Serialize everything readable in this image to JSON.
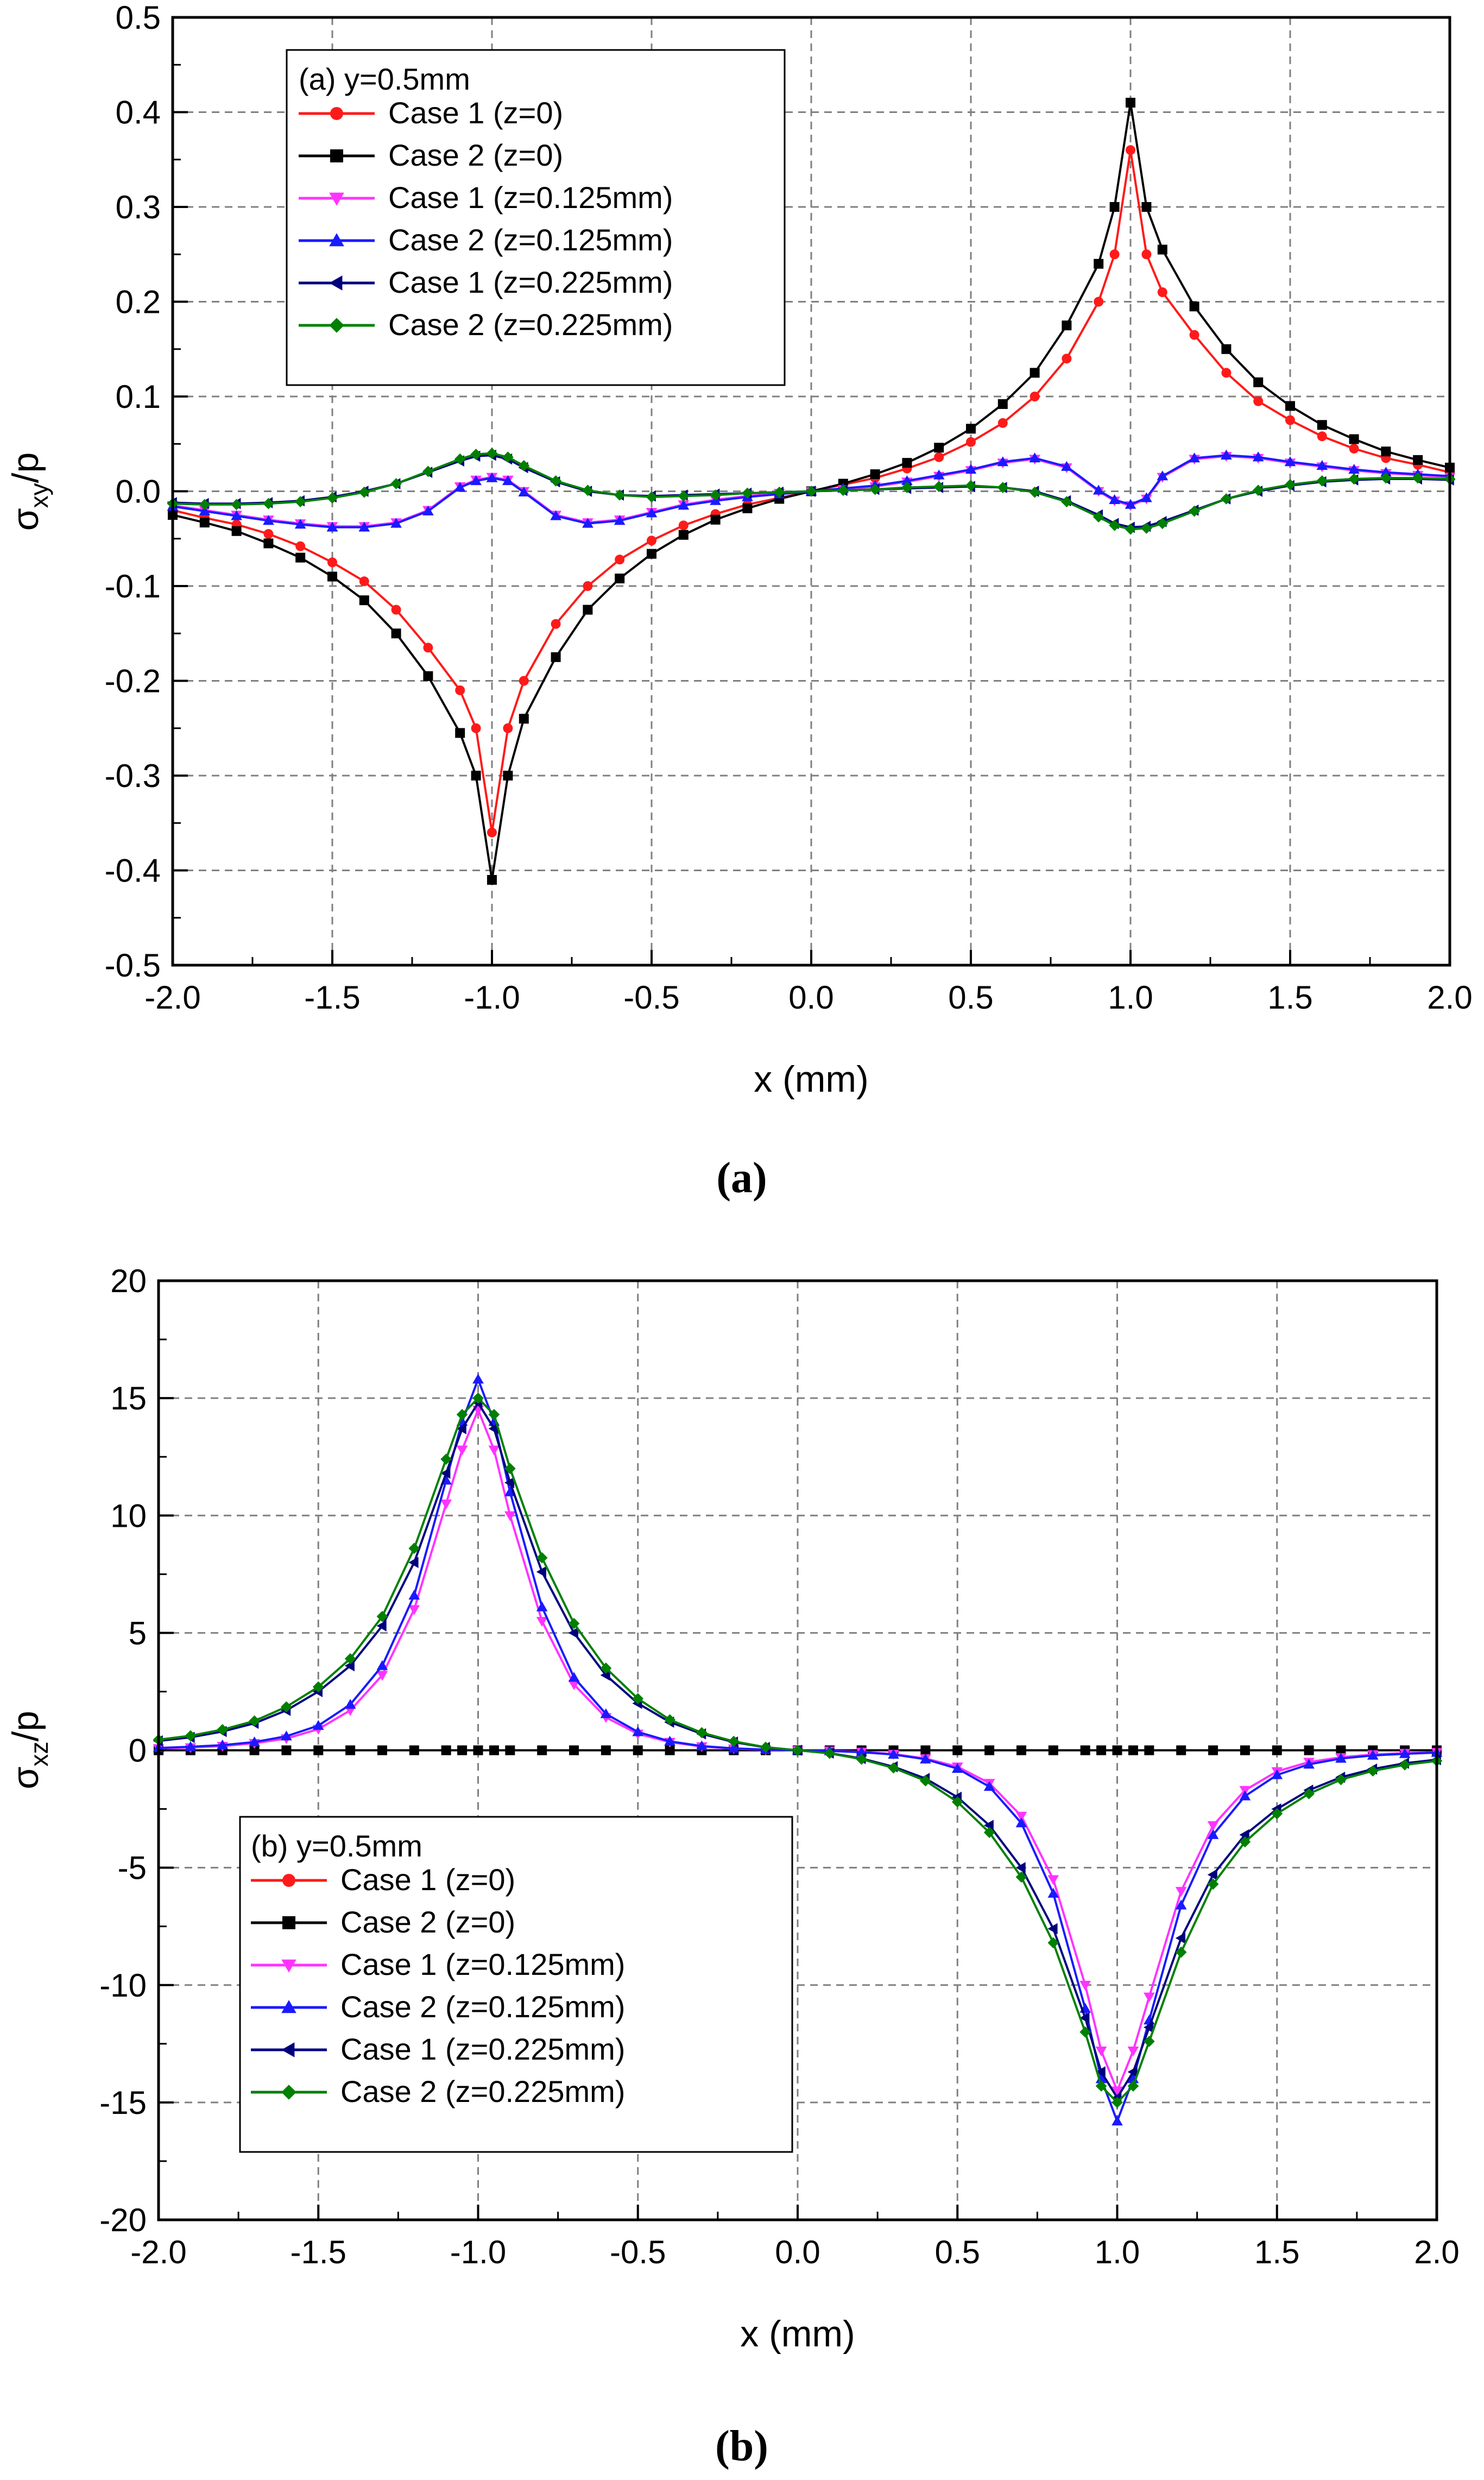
{
  "colors": {
    "case1_z0": "#ff1a1a",
    "case2_z0": "#000000",
    "case1_z0125": "#ff33ff",
    "case2_z0125": "#1a1aff",
    "case1_z0225": "#00007f",
    "case2_z0225": "#008000",
    "grid": "#808080"
  },
  "chart_data": [
    {
      "type": "line",
      "panel": "(a)",
      "caption": "(a)",
      "xlabel": "x (mm)",
      "ylabel_main": "σ",
      "ylabel_sub": "xy",
      "ylabel_tail": "/p",
      "xlim": [
        -2.0,
        2.0
      ],
      "ylim": [
        -0.5,
        0.5
      ],
      "xticks": [
        -2.0,
        -1.5,
        -1.0,
        -0.5,
        0.0,
        0.5,
        1.0,
        1.5,
        2.0
      ],
      "xtick_labels": [
        "-2.0",
        "-1.5",
        "-1.0",
        "-0.5",
        "0.0",
        "0.5",
        "1.0",
        "1.5",
        "2.0"
      ],
      "yticks": [
        -0.5,
        -0.4,
        -0.3,
        -0.2,
        -0.1,
        0.0,
        0.1,
        0.2,
        0.3,
        0.4,
        0.5
      ],
      "ytick_labels": [
        "-0.5",
        "-0.4",
        "-0.3",
        "-0.2",
        "-0.1",
        "0.0",
        "0.1",
        "0.2",
        "0.3",
        "0.4",
        "0.5"
      ],
      "grid": true,
      "legend_title": "(a) y=0.5mm",
      "legend_position": "top-left",
      "x": [
        -2.0,
        -1.9,
        -1.8,
        -1.7,
        -1.6,
        -1.5,
        -1.4,
        -1.3,
        -1.2,
        -1.1,
        -1.05,
        -1.0,
        -0.95,
        -0.9,
        -0.8,
        -0.7,
        -0.6,
        -0.5,
        -0.4,
        -0.3,
        -0.2,
        -0.1,
        0.0,
        0.1,
        0.2,
        0.3,
        0.4,
        0.5,
        0.6,
        0.7,
        0.8,
        0.9,
        0.95,
        1.0,
        1.05,
        1.1,
        1.2,
        1.3,
        1.4,
        1.5,
        1.6,
        1.7,
        1.8,
        1.9,
        2.0
      ],
      "series": [
        {
          "name": "Case 1 (z=0)",
          "color_key": "case1_z0",
          "marker": "circle",
          "values": [
            -0.02,
            -0.028,
            -0.035,
            -0.045,
            -0.058,
            -0.075,
            -0.095,
            -0.125,
            -0.165,
            -0.21,
            -0.25,
            -0.36,
            -0.25,
            -0.2,
            -0.14,
            -0.1,
            -0.072,
            -0.052,
            -0.036,
            -0.024,
            -0.014,
            -0.007,
            0.0,
            0.007,
            0.014,
            0.024,
            0.036,
            0.052,
            0.072,
            0.1,
            0.14,
            0.2,
            0.25,
            0.36,
            0.25,
            0.21,
            0.165,
            0.125,
            0.095,
            0.075,
            0.058,
            0.045,
            0.035,
            0.028,
            0.02
          ]
        },
        {
          "name": "Case 2 (z=0)",
          "color_key": "case2_z0",
          "marker": "square",
          "values": [
            -0.025,
            -0.033,
            -0.042,
            -0.055,
            -0.07,
            -0.09,
            -0.115,
            -0.15,
            -0.195,
            -0.255,
            -0.3,
            -0.41,
            -0.3,
            -0.24,
            -0.175,
            -0.125,
            -0.092,
            -0.066,
            -0.046,
            -0.03,
            -0.018,
            -0.008,
            0.0,
            0.008,
            0.018,
            0.03,
            0.046,
            0.066,
            0.092,
            0.125,
            0.175,
            0.24,
            0.3,
            0.41,
            0.3,
            0.255,
            0.195,
            0.15,
            0.115,
            0.09,
            0.07,
            0.055,
            0.042,
            0.033,
            0.025
          ]
        },
        {
          "name": "Case 1 (z=0.125mm)",
          "color_key": "case1_z0125",
          "marker": "triangle-down",
          "values": [
            -0.015,
            -0.02,
            -0.025,
            -0.03,
            -0.034,
            -0.037,
            -0.037,
            -0.033,
            -0.02,
            0.005,
            0.012,
            0.015,
            0.012,
            0.0,
            -0.025,
            -0.033,
            -0.03,
            -0.022,
            -0.014,
            -0.009,
            -0.005,
            -0.002,
            0.0,
            0.002,
            0.005,
            0.01,
            0.016,
            0.022,
            0.03,
            0.034,
            0.025,
            0.0,
            -0.01,
            -0.015,
            -0.008,
            0.015,
            0.034,
            0.037,
            0.035,
            0.03,
            0.026,
            0.022,
            0.019,
            0.017,
            0.015
          ]
        },
        {
          "name": "Case 2 (z=0.125mm)",
          "color_key": "case2_z0125",
          "marker": "triangle-up",
          "values": [
            -0.016,
            -0.021,
            -0.026,
            -0.031,
            -0.035,
            -0.038,
            -0.038,
            -0.034,
            -0.021,
            0.004,
            0.011,
            0.014,
            0.011,
            -0.001,
            -0.026,
            -0.034,
            -0.031,
            -0.023,
            -0.015,
            -0.01,
            -0.006,
            -0.003,
            0.0,
            0.003,
            0.006,
            0.011,
            0.017,
            0.023,
            0.031,
            0.035,
            0.026,
            0.001,
            -0.009,
            -0.014,
            -0.007,
            0.016,
            0.035,
            0.038,
            0.036,
            0.031,
            0.027,
            0.023,
            0.02,
            0.018,
            0.016
          ]
        },
        {
          "name": "Case 1 (z=0.225mm)",
          "color_key": "case1_z0225",
          "marker": "triangle-left",
          "values": [
            -0.012,
            -0.013,
            -0.013,
            -0.012,
            -0.01,
            -0.006,
            0.0,
            0.008,
            0.02,
            0.032,
            0.037,
            0.038,
            0.034,
            0.025,
            0.01,
            0.0,
            -0.004,
            -0.005,
            -0.004,
            -0.003,
            -0.002,
            -0.001,
            0.0,
            0.001,
            0.002,
            0.003,
            0.004,
            0.005,
            0.004,
            0.0,
            -0.01,
            -0.025,
            -0.034,
            -0.038,
            -0.037,
            -0.032,
            -0.02,
            -0.008,
            0.0,
            0.006,
            0.01,
            0.012,
            0.013,
            0.013,
            0.012
          ]
        },
        {
          "name": "Case 2 (z=0.225mm)",
          "color_key": "case2_z0225",
          "marker": "diamond",
          "values": [
            -0.013,
            -0.014,
            -0.014,
            -0.013,
            -0.011,
            -0.007,
            -0.001,
            0.008,
            0.021,
            0.034,
            0.039,
            0.04,
            0.036,
            0.027,
            0.011,
            0.001,
            -0.004,
            -0.006,
            -0.005,
            -0.004,
            -0.002,
            -0.001,
            0.0,
            0.001,
            0.002,
            0.004,
            0.005,
            0.006,
            0.004,
            -0.001,
            -0.011,
            -0.027,
            -0.036,
            -0.04,
            -0.039,
            -0.034,
            -0.021,
            -0.008,
            0.001,
            0.007,
            0.011,
            0.013,
            0.014,
            0.014,
            0.013
          ]
        }
      ]
    },
    {
      "type": "line",
      "panel": "(b)",
      "caption": "(b)",
      "xlabel": "x (mm)",
      "ylabel_main": "σ",
      "ylabel_sub": "xz",
      "ylabel_tail": "/p",
      "xlim": [
        -2.0,
        2.0
      ],
      "ylim": [
        -20,
        20
      ],
      "xticks": [
        -2.0,
        -1.5,
        -1.0,
        -0.5,
        0.0,
        0.5,
        1.0,
        1.5,
        2.0
      ],
      "xtick_labels": [
        "-2.0",
        "-1.5",
        "-1.0",
        "-0.5",
        "0.0",
        "0.5",
        "1.0",
        "1.5",
        "2.0"
      ],
      "yticks": [
        -20,
        -15,
        -10,
        -5,
        0,
        5,
        10,
        15,
        20
      ],
      "ytick_labels": [
        "-20",
        "-15",
        "-10",
        "-5",
        "0",
        "5",
        "10",
        "15",
        "20"
      ],
      "grid": true,
      "legend_title": "(b) y=0.5mm",
      "legend_position": "bottom-left",
      "x": [
        -2.0,
        -1.9,
        -1.8,
        -1.7,
        -1.6,
        -1.5,
        -1.4,
        -1.3,
        -1.2,
        -1.1,
        -1.05,
        -1.0,
        -0.95,
        -0.9,
        -0.8,
        -0.7,
        -0.6,
        -0.5,
        -0.4,
        -0.3,
        -0.2,
        -0.1,
        0.0,
        0.1,
        0.2,
        0.3,
        0.4,
        0.5,
        0.6,
        0.7,
        0.8,
        0.9,
        0.95,
        1.0,
        1.05,
        1.1,
        1.2,
        1.3,
        1.4,
        1.5,
        1.6,
        1.7,
        1.8,
        1.9,
        2.0
      ],
      "series": [
        {
          "name": "Case 1 (z=0)",
          "color_key": "case1_z0",
          "marker": "circle",
          "values": [
            0,
            0,
            0,
            0,
            0,
            0,
            0,
            0,
            0,
            0,
            0,
            0,
            0,
            0,
            0,
            0,
            0,
            0,
            0,
            0,
            0,
            0,
            0,
            0,
            0,
            0,
            0,
            0,
            0,
            0,
            0,
            0,
            0,
            0,
            0,
            0,
            0,
            0,
            0,
            0,
            0,
            0,
            0,
            0,
            0
          ]
        },
        {
          "name": "Case 2 (z=0)",
          "color_key": "case2_z0",
          "marker": "square",
          "values": [
            0,
            0,
            0,
            0,
            0,
            0,
            0,
            0,
            0,
            0,
            0,
            0,
            0,
            0,
            0,
            0,
            0,
            0,
            0,
            0,
            0,
            0,
            0,
            0,
            0,
            0,
            0,
            0,
            0,
            0,
            0,
            0,
            0,
            0,
            0,
            0,
            0,
            0,
            0,
            0,
            0,
            0,
            0,
            0,
            0
          ]
        },
        {
          "name": "Case 1 (z=0.125mm)",
          "color_key": "case1_z0125",
          "marker": "triangle-down",
          "values": [
            0.08,
            0.12,
            0.18,
            0.3,
            0.5,
            0.9,
            1.7,
            3.2,
            6.0,
            10.5,
            12.8,
            14.5,
            12.8,
            10.0,
            5.5,
            2.8,
            1.4,
            0.7,
            0.35,
            0.16,
            0.07,
            0.02,
            0.0,
            -0.02,
            -0.07,
            -0.16,
            -0.35,
            -0.7,
            -1.4,
            -2.8,
            -5.5,
            -10.0,
            -12.8,
            -14.5,
            -12.8,
            -10.5,
            -6.0,
            -3.2,
            -1.7,
            -0.9,
            -0.5,
            -0.3,
            -0.18,
            -0.12,
            -0.08
          ]
        },
        {
          "name": "Case 2 (z=0.125mm)",
          "color_key": "case2_z0125",
          "marker": "triangle-up",
          "values": [
            0.1,
            0.15,
            0.22,
            0.35,
            0.6,
            1.05,
            1.95,
            3.6,
            6.6,
            11.5,
            14.0,
            15.8,
            14.0,
            11.0,
            6.1,
            3.1,
            1.55,
            0.78,
            0.38,
            0.18,
            0.08,
            0.03,
            0.0,
            -0.03,
            -0.08,
            -0.18,
            -0.38,
            -0.78,
            -1.55,
            -3.1,
            -6.1,
            -11.0,
            -14.0,
            -15.8,
            -14.0,
            -11.5,
            -6.6,
            -3.6,
            -1.95,
            -1.05,
            -0.6,
            -0.35,
            -0.22,
            -0.15,
            -0.1
          ]
        },
        {
          "name": "Case 1 (z=0.225mm)",
          "color_key": "case1_z0225",
          "marker": "triangle-left",
          "values": [
            0.4,
            0.55,
            0.8,
            1.15,
            1.7,
            2.5,
            3.6,
            5.3,
            8.0,
            11.8,
            13.7,
            14.8,
            13.7,
            11.4,
            7.6,
            5.0,
            3.2,
            2.0,
            1.2,
            0.7,
            0.35,
            0.12,
            0.0,
            -0.12,
            -0.35,
            -0.7,
            -1.2,
            -2.0,
            -3.2,
            -5.0,
            -7.6,
            -11.4,
            -13.7,
            -14.8,
            -13.7,
            -11.8,
            -8.0,
            -5.3,
            -3.6,
            -2.5,
            -1.7,
            -1.15,
            -0.8,
            -0.55,
            -0.4
          ]
        },
        {
          "name": "Case 2 (z=0.225mm)",
          "color_key": "case2_z0225",
          "marker": "diamond",
          "values": [
            0.45,
            0.62,
            0.88,
            1.25,
            1.85,
            2.7,
            3.9,
            5.7,
            8.6,
            12.4,
            14.3,
            15.0,
            14.3,
            12.0,
            8.2,
            5.4,
            3.5,
            2.2,
            1.3,
            0.75,
            0.38,
            0.13,
            0.0,
            -0.13,
            -0.38,
            -0.75,
            -1.3,
            -2.2,
            -3.5,
            -5.4,
            -8.2,
            -12.0,
            -14.3,
            -15.0,
            -14.3,
            -12.4,
            -8.6,
            -5.7,
            -3.9,
            -2.7,
            -1.85,
            -1.25,
            -0.88,
            -0.62,
            -0.45
          ]
        }
      ]
    }
  ]
}
